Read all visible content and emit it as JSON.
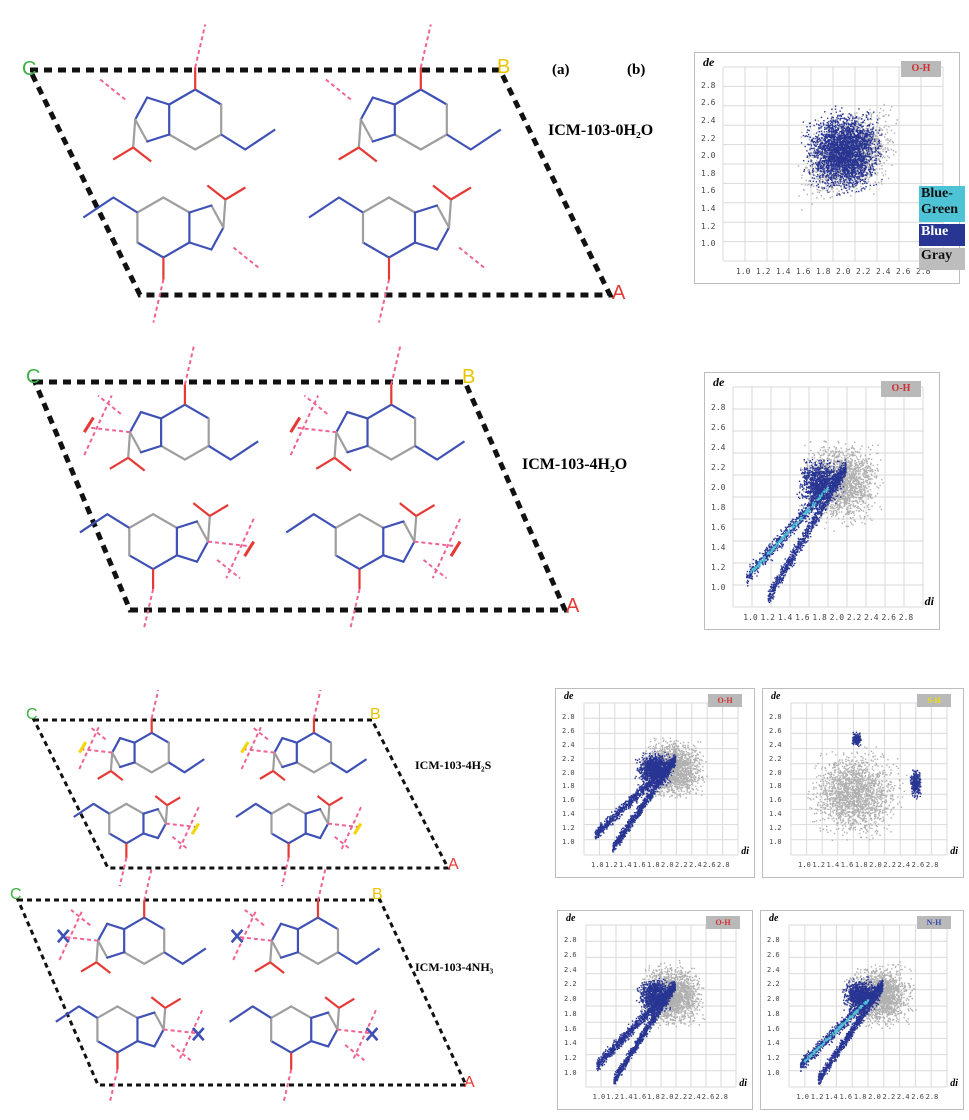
{
  "panel_tags": {
    "a": "(a)",
    "b": "(b)"
  },
  "cell_axes": {
    "c": "C",
    "b": "B",
    "a": "A"
  },
  "crystals": [
    {
      "name": "ICM-103-0H₂O"
    },
    {
      "name": "ICM-103-4H₂O"
    },
    {
      "name": "ICM-103-4H₂S"
    },
    {
      "name": "ICM-103-4NH₃"
    }
  ],
  "plot_axes": {
    "de": "de",
    "di": "di"
  },
  "plot_ticks": {
    "de": [
      "2.8",
      "2.6",
      "2.4",
      "2.2",
      "2.0",
      "1.8",
      "1.6",
      "1.4",
      "1.2",
      "1.0"
    ],
    "di": [
      "1.0",
      "1.2",
      "1.4",
      "1.6",
      "1.8",
      "2.0",
      "2.2",
      "2.4",
      "2.6",
      "2.8"
    ]
  },
  "plots": [
    {
      "id": "p1",
      "badge": "O-H",
      "badge_color": "#d32f2f"
    },
    {
      "id": "p2",
      "badge": "O-H",
      "badge_color": "#d32f2f"
    },
    {
      "id": "p3",
      "badge": "O-H",
      "badge_color": "#d32f2f"
    },
    {
      "id": "p4",
      "badge": "S-H",
      "badge_color": "#f3e000"
    },
    {
      "id": "p5",
      "badge": "O-H",
      "badge_color": "#d32f2f"
    },
    {
      "id": "p6",
      "badge": "N-H",
      "badge_color": "#3949ab"
    }
  ],
  "legend": [
    {
      "label": "Blue-Green",
      "color": "#4fc3d6"
    },
    {
      "label": "Blue",
      "color": "#283593"
    },
    {
      "label": "Gray",
      "color": "#bdbdbd"
    }
  ],
  "colors": {
    "bond_carbon": "#9e9e9e",
    "bond_nitrogen": "#3f51b5",
    "bond_oxygen": "#e53935",
    "hbond": "#f06292",
    "cell_edge": "#111111",
    "scatter_blue": "#283593",
    "scatter_gray": "#b0b0b0",
    "scatter_cyan": "#4fc3d6",
    "sulfur": "#f1d600"
  }
}
